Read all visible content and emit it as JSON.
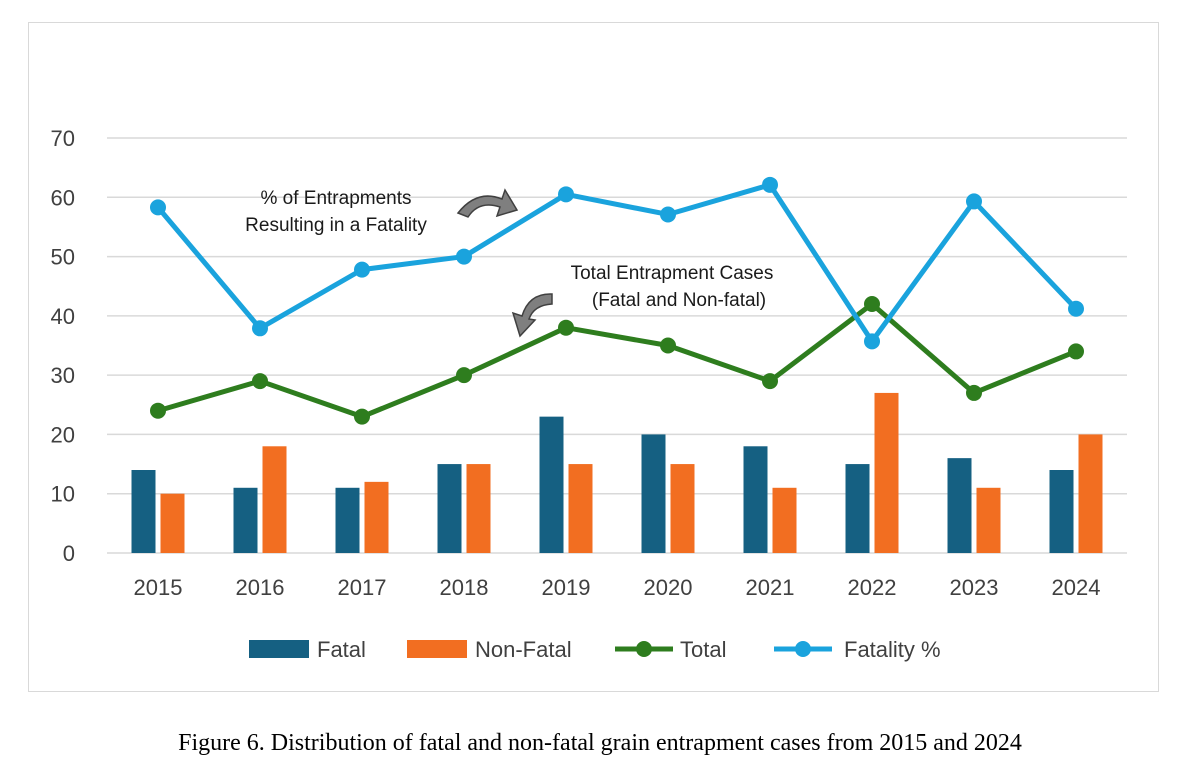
{
  "caption": "Figure 6. Distribution of fatal and non-fatal grain entrapment cases from 2015 and 2024",
  "chart_data": {
    "type": "bar",
    "title": "",
    "xlabel": "",
    "ylabel": "",
    "ylim": [
      0,
      70
    ],
    "yticks": [
      0,
      10,
      20,
      30,
      40,
      50,
      60,
      70
    ],
    "grid": true,
    "legend_position": "bottom",
    "categories": [
      "2015",
      "2016",
      "2017",
      "2018",
      "2019",
      "2020",
      "2021",
      "2022",
      "2023",
      "2024"
    ],
    "series": [
      {
        "name": "Fatal",
        "type": "bar",
        "color": "#156082",
        "values": [
          14,
          11,
          11,
          15,
          23,
          20,
          18,
          15,
          16,
          14
        ]
      },
      {
        "name": "Non-Fatal",
        "type": "bar",
        "color": "#F26E21",
        "values": [
          10,
          18,
          12,
          15,
          15,
          15,
          11,
          27,
          11,
          20
        ]
      },
      {
        "name": "Total",
        "type": "line",
        "color": "#2E7D1E",
        "values": [
          24,
          29,
          23,
          30,
          38,
          35,
          29,
          42,
          27,
          34
        ]
      },
      {
        "name": "Fatality %",
        "type": "line",
        "color": "#1AA3DD",
        "values": [
          58.3,
          37.9,
          47.8,
          50,
          60.5,
          57.1,
          62.1,
          35.7,
          59.3,
          41.2
        ]
      }
    ],
    "annotations": [
      {
        "lines": [
          "% of Entrapments",
          "Resulting in a Fatality"
        ]
      },
      {
        "lines": [
          "Total Entrapment Cases",
          "(Fatal and Non-fatal)"
        ]
      }
    ]
  }
}
